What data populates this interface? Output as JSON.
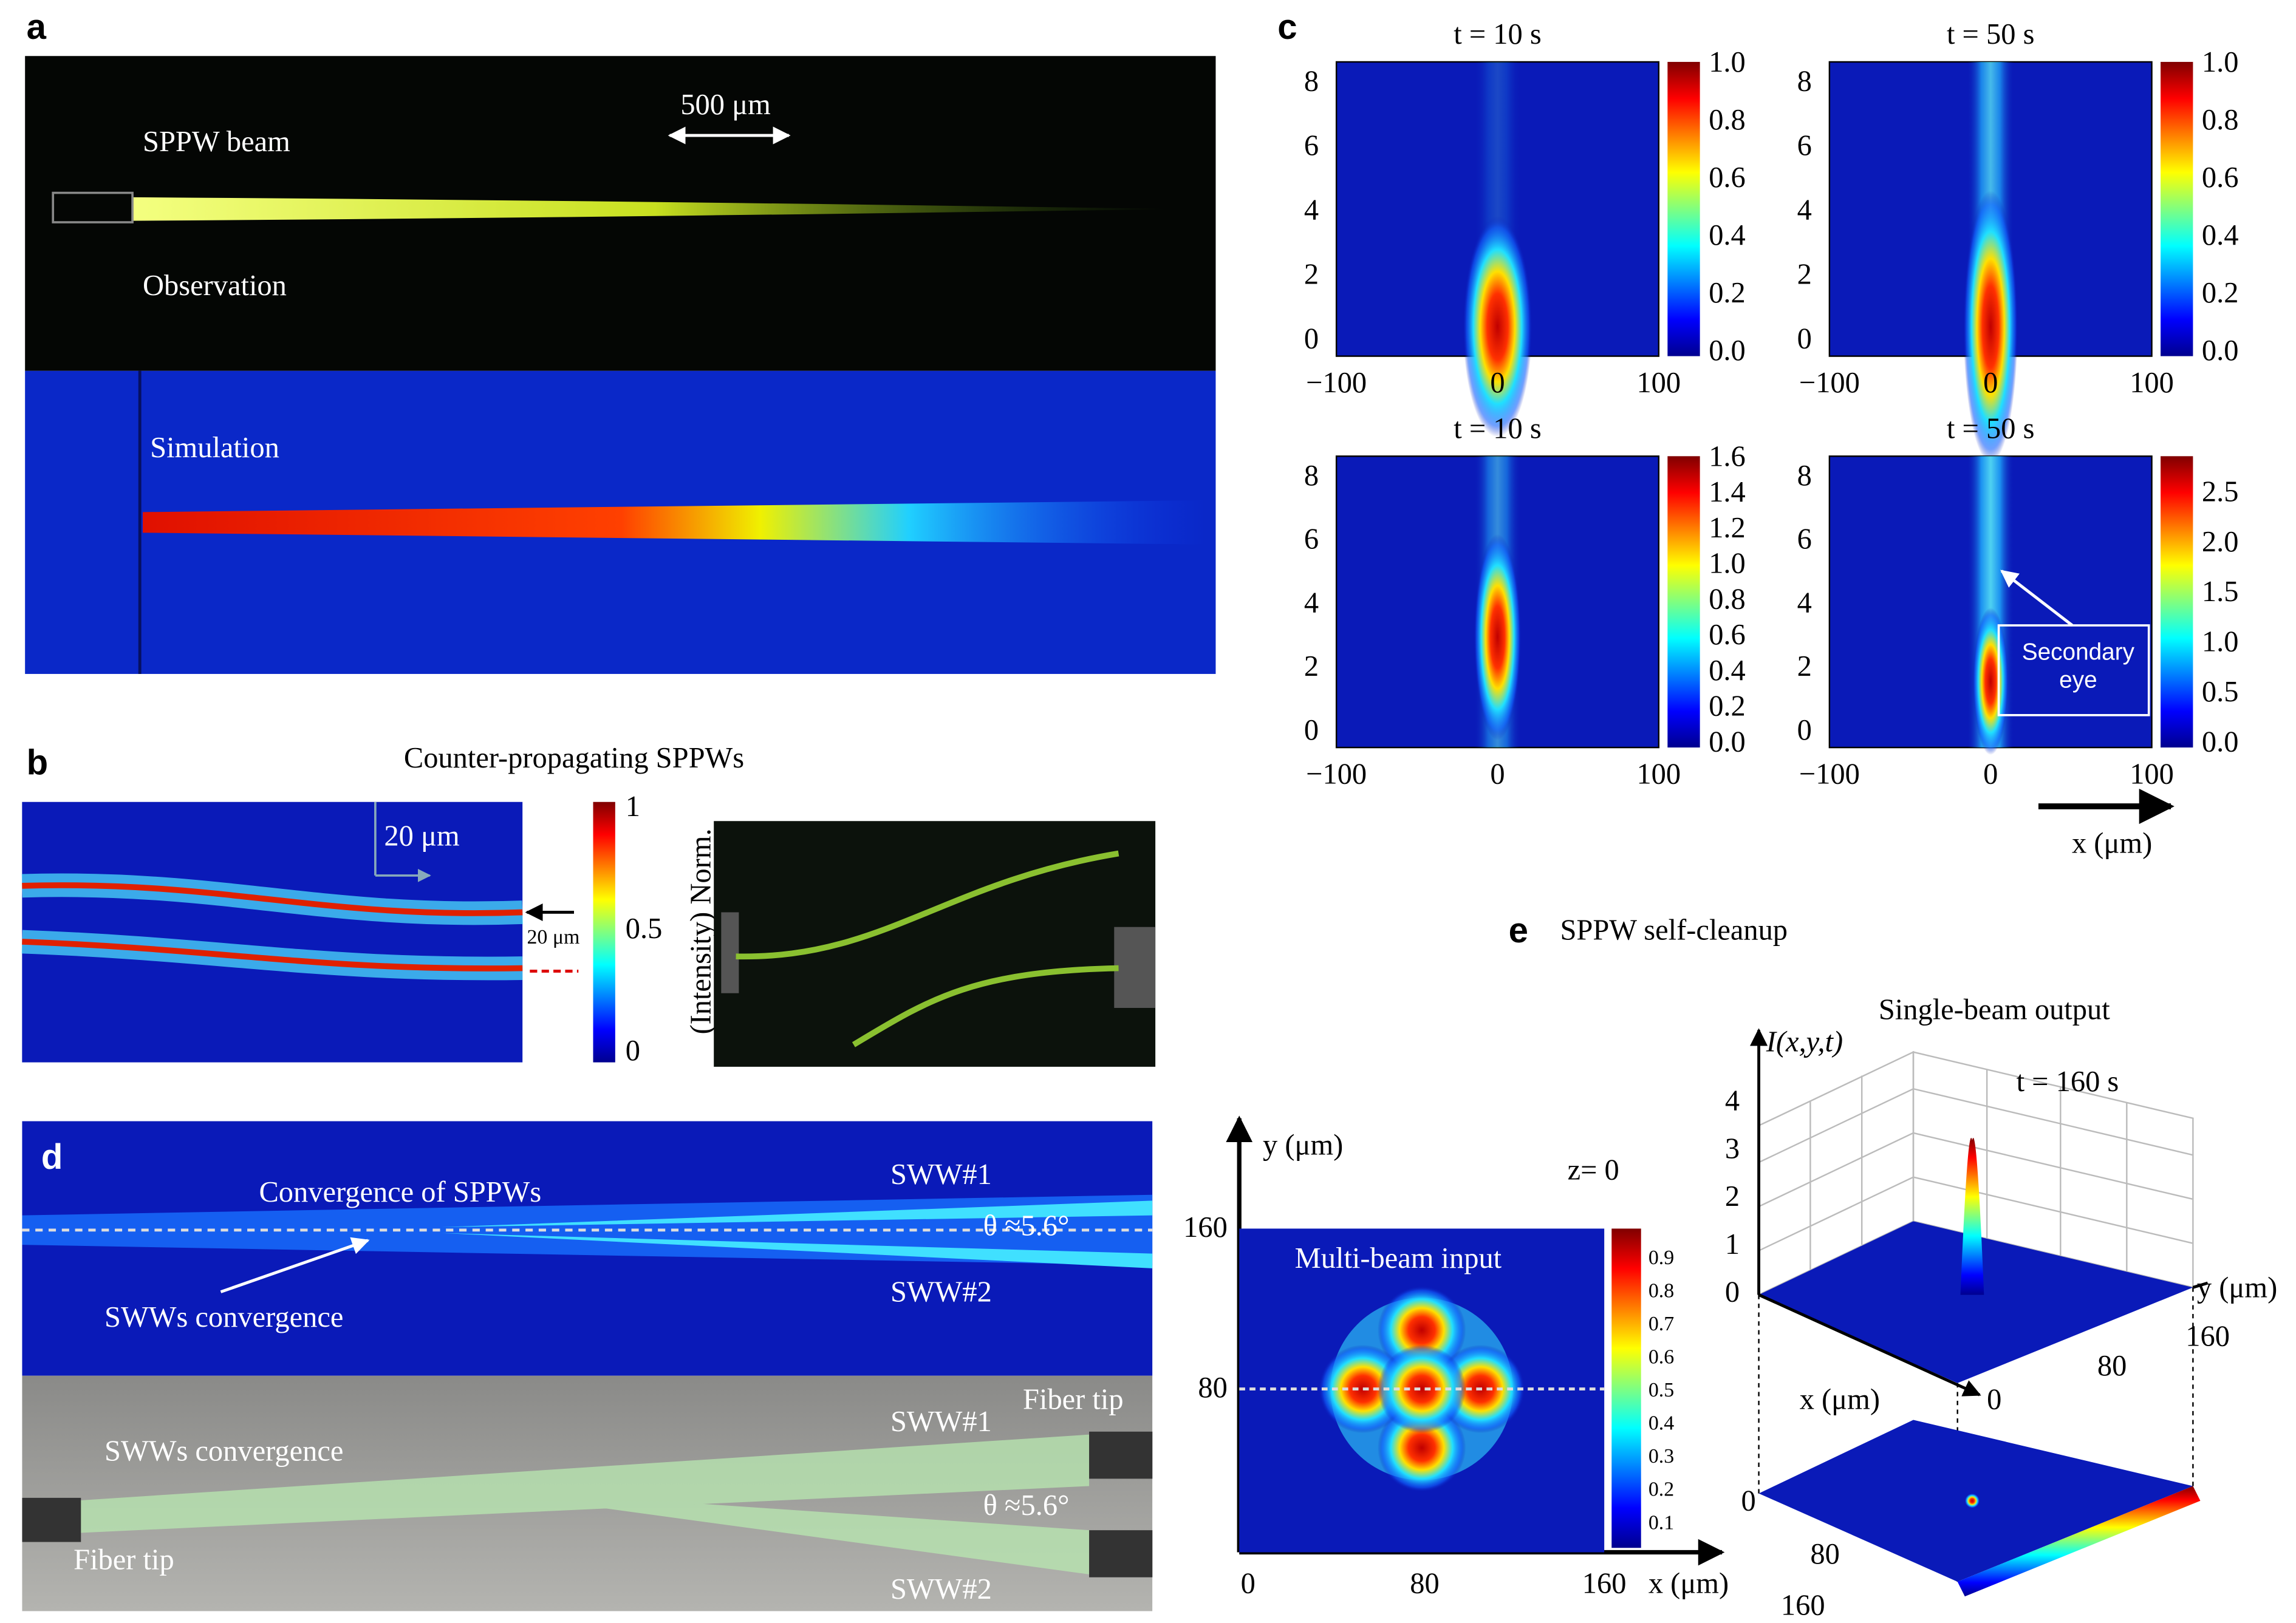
{
  "panel_a": {
    "label": "a",
    "scale_bar": "500 μm",
    "beam_label": "SPPW beam",
    "observation": "Observation",
    "simulation": "Simulation"
  },
  "panel_b": {
    "label": "b",
    "title": "Counter-propagating SPPWs",
    "scale_bar": "20 μm",
    "separation": "20 μm",
    "colorbar_label": "(Intensity) Norm.",
    "colorbar_ticks": [
      "1",
      "0.5",
      "0"
    ]
  },
  "panel_c": {
    "label": "c",
    "plots": [
      {
        "title": "t = 10 s",
        "colorbar_ticks": [
          "1.0",
          "0.8",
          "0.6",
          "0.4",
          "0.2",
          "0.0"
        ]
      },
      {
        "title": "t = 50 s",
        "colorbar_ticks": [
          "1.0",
          "0.8",
          "0.6",
          "0.4",
          "0.2",
          "0.0"
        ]
      },
      {
        "title": "t = 10 s",
        "colorbar_ticks": [
          "1.6",
          "1.4",
          "1.2",
          "1.0",
          "0.8",
          "0.6",
          "0.4",
          "0.2",
          "0.0"
        ]
      },
      {
        "title": "t = 50 s",
        "colorbar_ticks": [
          "2.5",
          "2.0",
          "1.5",
          "1.0",
          "0.5",
          "0.0"
        ]
      }
    ],
    "y_ticks": [
      "0",
      "2",
      "4",
      "6",
      "8"
    ],
    "x_ticks": [
      "−100",
      "0",
      "100"
    ],
    "x_label": "x (μm)",
    "annotation": [
      "Secondary",
      "eye"
    ]
  },
  "panel_d": {
    "label": "d",
    "top": {
      "title": "Convergence of SPPWs",
      "sww1": "SWW#1",
      "angle": "θ ≈5.6°",
      "sww2": "SWW#2",
      "convergence": "SWWs convergence"
    },
    "bottom": {
      "convergence": "SWWs convergence",
      "sww1": "SWW#1",
      "fiber_tip_right": "Fiber tip",
      "angle": "θ ≈5.6°",
      "fiber_tip_left": "Fiber tip",
      "sww2": "SWW#2"
    }
  },
  "panel_e": {
    "label": "e",
    "title": "SPPW self-cleanup",
    "input": {
      "y_label": "y (μm)",
      "x_label": "x (μm)",
      "z_label": "z= 0",
      "title": "Multi-beam input",
      "y_ticks": [
        "160",
        "80"
      ],
      "x_ticks": [
        "0",
        "80",
        "160"
      ],
      "colorbar_ticks": [
        "0.9",
        "0.8",
        "0.7",
        "0.6",
        "0.5",
        "0.4",
        "0.3",
        "0.2",
        "0.1"
      ]
    },
    "output": {
      "title": "Single-beam output",
      "z_label": "I(x,y,t)",
      "time": "t = 160 s",
      "z_ticks": [
        "4",
        "3",
        "2",
        "1",
        "0"
      ],
      "y_label": "y (μm)",
      "y_ticks": [
        "160",
        "80"
      ],
      "x_label": "x (μm)",
      "x_tick": "0",
      "lower_ticks": [
        "0",
        "80",
        "160"
      ]
    }
  }
}
